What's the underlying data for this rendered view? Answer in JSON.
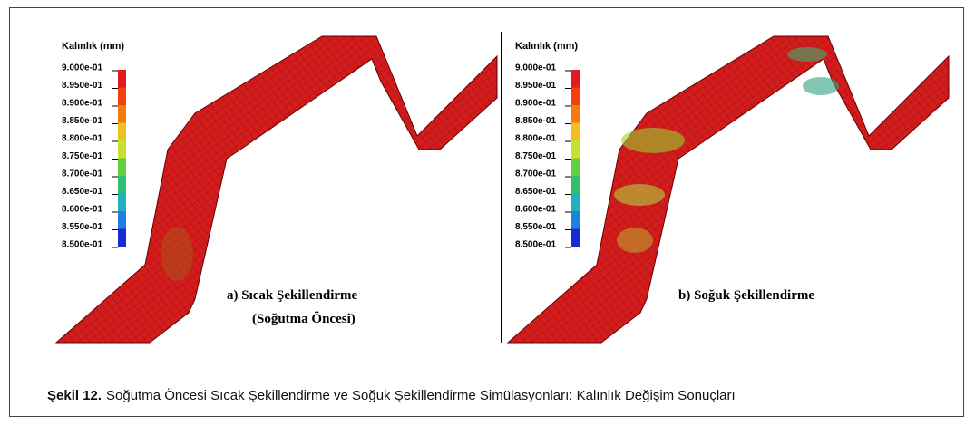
{
  "figure": {
    "panels": [
      {
        "legend_title": "Kalınlık (mm)",
        "legend_labels": [
          "9.000e-01",
          "8.950e-01",
          "8.900e-01",
          "8.850e-01",
          "8.800e-01",
          "8.750e-01",
          "8.700e-01",
          "8.650e-01",
          "8.600e-01",
          "8.550e-01",
          "8.500e-01"
        ],
        "label_lines": [
          "a) Sıcak Şekillendirme",
          "(Soğutma Öncesi)"
        ]
      },
      {
        "legend_title": "Kalınlık (mm)",
        "legend_labels": [
          "9.000e-01",
          "8.950e-01",
          "8.900e-01",
          "8.850e-01",
          "8.800e-01",
          "8.750e-01",
          "8.700e-01",
          "8.650e-01",
          "8.600e-01",
          "8.550e-01",
          "8.500e-01"
        ],
        "label_lines": [
          "b) Soğuk Şekillendirme"
        ]
      }
    ],
    "caption": {
      "label": "Şekil 12.",
      "text": "Soğutma Öncesi Sıcak Şekillendirme ve Soğuk Şekillendirme Simülasyonları: Kalınlık Değişim Sonuçları"
    }
  }
}
